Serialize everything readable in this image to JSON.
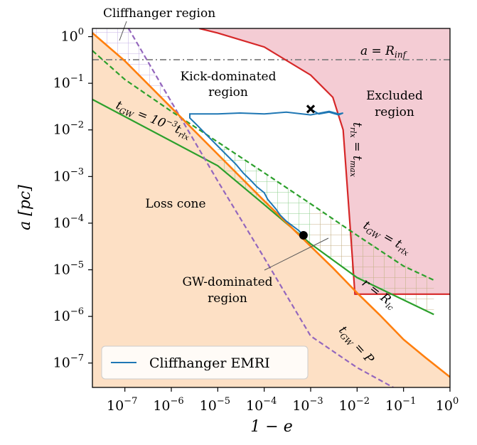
{
  "chart_data": {
    "type": "line",
    "title": "",
    "xlabel": "1 − e",
    "ylabel": "a [pc]",
    "xscale": "log",
    "yscale": "log",
    "xlim": [
      2e-08,
      1
    ],
    "ylim": [
      3e-08,
      1.5
    ],
    "x_ticks": [
      {
        "label": "10",
        "exp": "−7",
        "value": 1e-07
      },
      {
        "label": "10",
        "exp": "−6",
        "value": 1e-06
      },
      {
        "label": "10",
        "exp": "−5",
        "value": 1e-05
      },
      {
        "label": "10",
        "exp": "−4",
        "value": 0.0001
      },
      {
        "label": "10",
        "exp": "−3",
        "value": 0.001
      },
      {
        "label": "10",
        "exp": "−2",
        "value": 0.01
      },
      {
        "label": "10",
        "exp": "−1",
        "value": 0.1
      },
      {
        "label": "10",
        "exp": "0",
        "value": 1
      }
    ],
    "y_ticks": [
      {
        "label": "10",
        "exp": "0",
        "value": 1
      },
      {
        "label": "10",
        "exp": "−1",
        "value": 0.1
      },
      {
        "label": "10",
        "exp": "−2",
        "value": 0.01
      },
      {
        "label": "10",
        "exp": "−3",
        "value": 0.001
      },
      {
        "label": "10",
        "exp": "−4",
        "value": 0.0001
      },
      {
        "label": "10",
        "exp": "−5",
        "value": 1e-05
      },
      {
        "label": "10",
        "exp": "−6",
        "value": 1e-06
      },
      {
        "label": "10",
        "exp": "−7",
        "value": 1e-07
      }
    ],
    "legend": {
      "position": "bottom-left",
      "label": "Cliffhanger EMRI"
    },
    "colors": {
      "emri": "#1f77b4",
      "orange": "#ff7f0e",
      "green": "#2ca02c",
      "purple": "#9467bd",
      "red": "#d62728",
      "losscone_fill": "#fde0c5",
      "excluded_fill": "#f4ccd4",
      "rinf_line": "#7f7f7f"
    },
    "series": [
      {
        "key": "rinf",
        "x": [
          2e-08,
          1
        ],
        "y": [
          0.32,
          0.32
        ]
      },
      {
        "key": "orange",
        "x": [
          2e-08,
          1e-07,
          1e-06,
          1e-05,
          0.0001,
          0.001,
          0.003,
          0.01,
          0.03,
          0.1,
          0.3,
          1
        ],
        "y": [
          1.2,
          0.3,
          0.03,
          0.003,
          0.0003,
          3.2e-05,
          1.1e-05,
          3.2e-06,
          1.1e-06,
          3.2e-07,
          1.3e-07,
          5e-08
        ]
      },
      {
        "key": "green_solid",
        "x": [
          2e-08,
          1e-05,
          0.0001,
          0.001,
          0.01,
          0.45
        ],
        "y": [
          0.045,
          0.0017,
          0.00025,
          3.6e-05,
          6.8e-06,
          1.1e-06
        ]
      },
      {
        "key": "green_dashed",
        "x": [
          2e-08,
          1e-07,
          1e-06,
          1e-05,
          0.0001,
          0.001,
          0.01,
          0.1,
          0.45
        ],
        "y": [
          0.5,
          0.12,
          0.025,
          0.0055,
          0.0012,
          0.00026,
          5.5e-05,
          1.2e-05,
          6e-06
        ]
      },
      {
        "key": "purple_dashed",
        "x": [
          1.2e-07,
          1e-06,
          1e-05,
          0.0001,
          0.001,
          0.01,
          0.06
        ],
        "y": [
          1.5,
          0.04,
          0.0008,
          1.8e-05,
          3.8e-07,
          8e-08,
          3e-08
        ]
      },
      {
        "key": "red",
        "x": [
          4e-06,
          1e-05,
          0.0001,
          0.001,
          0.003,
          0.005,
          0.007,
          0.009,
          0.01,
          0.03,
          0.1,
          1
        ],
        "y": [
          1.5,
          1.2,
          0.6,
          0.15,
          0.05,
          0.01,
          0.0001,
          3e-06,
          3e-06,
          3e-06,
          3e-06,
          3e-06
        ]
      },
      {
        "key": "emri",
        "x": [
          0.0007,
          0.00055,
          0.0003,
          0.00022,
          0.00018,
          0.00012,
          0.0001,
          7e-05,
          5e-05,
          3.5e-05,
          2.5e-05,
          1.6e-05,
          1e-05,
          6e-06,
          3.5e-06,
          2.5e-06,
          2.5e-06,
          4e-06,
          1e-05,
          3e-05,
          0.0001,
          0.0003,
          0.001,
          0.0025,
          0.004,
          0.005,
          0.004,
          0.0025,
          0.0015,
          0.001
        ],
        "y": [
          5.5e-05,
          7e-05,
          0.00011,
          0.00015,
          0.0002,
          0.00032,
          0.00045,
          0.0006,
          0.00085,
          0.0012,
          0.0018,
          0.0028,
          0.0045,
          0.0075,
          0.013,
          0.018,
          0.022,
          0.022,
          0.022,
          0.023,
          0.022,
          0.024,
          0.021,
          0.025,
          0.022,
          0.023,
          0.021,
          0.024,
          0.022,
          0.028
        ]
      }
    ],
    "markers": [
      {
        "shape": "x",
        "x": 0.001,
        "y": 0.028
      },
      {
        "shape": "circle",
        "x": 0.0007,
        "y": 5.5e-05
      }
    ],
    "annotations": [
      {
        "key": "cliffhanger",
        "text": "Cliffhanger region",
        "x": 7e-08,
        "y": 1.5
      },
      {
        "key": "rinf",
        "text_main": "a = R",
        "text_sub": "inf",
        "x": 0.05,
        "y": 0.32
      },
      {
        "key": "kick1",
        "text": "Kick-dominated",
        "x": 2.5e-05,
        "y": 0.14
      },
      {
        "key": "kick2",
        "text": "region",
        "x": 2.5e-05,
        "y": 0.08
      },
      {
        "key": "excl1",
        "text": "Excluded",
        "x": 0.08,
        "y": 0.055
      },
      {
        "key": "excl2",
        "text": "region",
        "x": 0.08,
        "y": 0.03
      },
      {
        "key": "losscone",
        "text": "Loss cone",
        "x": 1e-06,
        "y": 0.00025
      },
      {
        "key": "gw1",
        "text": "GW-dominated",
        "x": 1.2e-05,
        "y": 7e-06
      },
      {
        "key": "gw2",
        "text": "region",
        "x": 1.2e-05,
        "y": 4e-06
      },
      {
        "key": "t_green",
        "text": "t_GW = 10^−3 t_rlx"
      },
      {
        "key": "t_rlx_max",
        "text": "t_rlx = t_max"
      },
      {
        "key": "t_gw_rlx",
        "text": "t_GW = t_rlx"
      },
      {
        "key": "r_rlc",
        "text": "r = R_lc"
      },
      {
        "key": "t_gw_p",
        "text": "t_GW = P"
      }
    ]
  }
}
